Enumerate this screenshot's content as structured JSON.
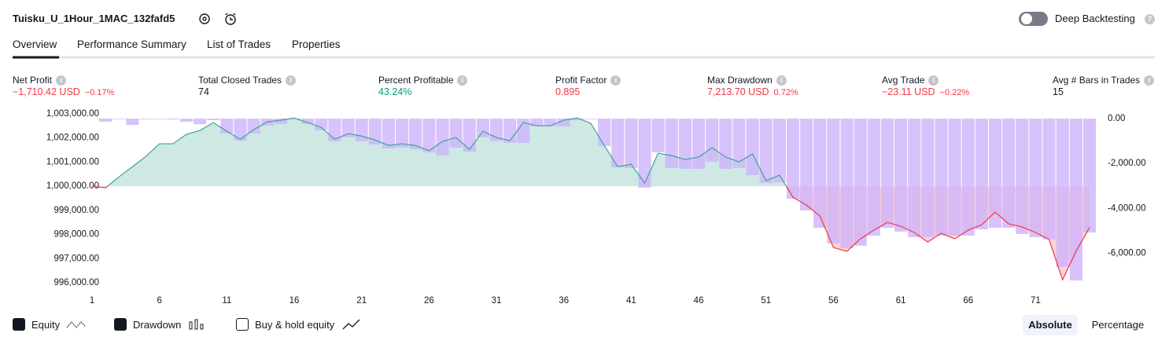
{
  "header": {
    "title": "Tuisku_U_1Hour_1MAC_132fafd5",
    "deep_backtesting": "Deep Backtesting"
  },
  "tabs": [
    "Overview",
    "Performance Summary",
    "List of Trades",
    "Properties"
  ],
  "metrics": [
    {
      "label": "Net Profit",
      "value": "−1,710.42 USD",
      "percent": "−0.17%"
    },
    {
      "label": "Total Closed Trades",
      "value": "74"
    },
    {
      "label": "Percent Profitable",
      "value": "43.24%"
    },
    {
      "label": "Profit Factor",
      "value": "0.895"
    },
    {
      "label": "Max Drawdown",
      "value": "7,213.70 USD",
      "percent": "0.72%"
    },
    {
      "label": "Avg Trade",
      "value": "−23.11 USD",
      "percent": "−0.22%"
    },
    {
      "label": "Avg # Bars in Trades",
      "value": "15"
    }
  ],
  "chart_data": {
    "type": "combo",
    "xlim": [
      1,
      75
    ],
    "xticks": [
      1,
      6,
      11,
      16,
      21,
      26,
      31,
      36,
      41,
      46,
      51,
      56,
      61,
      66,
      71
    ],
    "ylim": [
      996000,
      1003000
    ],
    "yticks": [
      {
        "value": 1003000,
        "label": "1,003,000.00"
      },
      {
        "value": 1002000,
        "label": "1,002,000.00"
      },
      {
        "value": 1001000,
        "label": "1,001,000.00"
      },
      {
        "value": 1000000,
        "label": "1,000,000.00"
      },
      {
        "value": 999000,
        "label": "999,000.00"
      },
      {
        "value": 998000,
        "label": "998,000.00"
      },
      {
        "value": 997000,
        "label": "997,000.00"
      },
      {
        "value": 996000,
        "label": "996,000.00"
      }
    ],
    "y2lim": [
      -7310,
      210
    ],
    "y2ticks": [
      {
        "value": 0,
        "label": "0.00"
      },
      {
        "value": -2000,
        "label": "-2,000.00"
      },
      {
        "value": -4000,
        "label": "-4,000.00"
      },
      {
        "value": -6000,
        "label": "-6,000.00"
      }
    ],
    "series": [
      {
        "name": "Equity",
        "type": "line",
        "color": "#3da393",
        "negative_color": "#f23645",
        "x": [
          1,
          2,
          3,
          4,
          5,
          6,
          7,
          8,
          9,
          10,
          11,
          12,
          13,
          14,
          15,
          16,
          17,
          18,
          19,
          20,
          21,
          22,
          23,
          24,
          25,
          26,
          27,
          28,
          29,
          30,
          31,
          32,
          33,
          34,
          35,
          36,
          37,
          38,
          39,
          40,
          41,
          42,
          43,
          44,
          45,
          46,
          47,
          48,
          49,
          50,
          51,
          52,
          53,
          54,
          55,
          56,
          57,
          58,
          59,
          60,
          61,
          62,
          63,
          64,
          65,
          66,
          67,
          68,
          69,
          70,
          71,
          72,
          73,
          74,
          75
        ],
        "values": [
          1000000,
          999935,
          1000390,
          1000810,
          1001240,
          1001760,
          1001760,
          1002150,
          1002310,
          1002640,
          1002280,
          1001950,
          1002350,
          1002670,
          1002740,
          1002830,
          1002640,
          1002440,
          1001950,
          1002180,
          1002080,
          1001920,
          1001690,
          1001760,
          1001690,
          1001470,
          1001860,
          1002020,
          1001530,
          1002280,
          1002020,
          1001890,
          1002640,
          1002510,
          1002510,
          1002740,
          1002830,
          1002610,
          1001690,
          1000810,
          1000910,
          1000130,
          1001370,
          1001270,
          1001110,
          1001210,
          1001600,
          1001210,
          1001010,
          1001340,
          1000230,
          1000460,
          999540,
          999220,
          998760,
          997460,
          997300,
          997820,
          998180,
          998500,
          998340,
          998080,
          997690,
          998050,
          997820,
          998180,
          998400,
          998930,
          998440,
          998310,
          998080,
          997790,
          996120,
          997300,
          998290
        ]
      },
      {
        "name": "Drawdown",
        "type": "bar",
        "axis": "y2",
        "color": "#cdb3fb",
        "x": [
          2,
          3,
          4,
          5,
          6,
          7,
          8,
          9,
          10,
          11,
          12,
          13,
          14,
          15,
          16,
          17,
          18,
          19,
          20,
          21,
          22,
          23,
          24,
          25,
          26,
          27,
          28,
          29,
          30,
          31,
          32,
          33,
          34,
          35,
          36,
          37,
          38,
          39,
          40,
          41,
          42,
          43,
          44,
          45,
          46,
          47,
          48,
          49,
          50,
          51,
          52,
          53,
          54,
          55,
          56,
          57,
          58,
          59,
          60,
          61,
          62,
          63,
          64,
          65,
          66,
          67,
          68,
          69,
          70,
          71,
          72,
          73,
          74,
          75
        ],
        "values": [
          -140,
          -30,
          -280,
          -30,
          -30,
          -40,
          -140,
          -250,
          -70,
          -660,
          -980,
          -660,
          -310,
          -240,
          -30,
          -240,
          -520,
          -1010,
          -840,
          -1010,
          -1150,
          -1330,
          -1290,
          -1360,
          -1500,
          -1640,
          -1290,
          -1470,
          -840,
          -1010,
          -1080,
          -1080,
          -350,
          -350,
          -350,
          -70,
          -30,
          -1220,
          -2170,
          -2200,
          -3080,
          -1500,
          -2200,
          -2240,
          -2240,
          -1920,
          -2240,
          -2200,
          -2520,
          -2870,
          -2830,
          -3570,
          -4090,
          -4860,
          -5560,
          -5770,
          -5660,
          -5210,
          -4860,
          -5030,
          -5280,
          -5280,
          -5210,
          -5210,
          -5210,
          -4930,
          -4860,
          -4860,
          -5140,
          -5280,
          -5380,
          -6610,
          -7210,
          -5070
        ]
      }
    ]
  },
  "controls": {
    "buy_hold": "Buy & hold equity",
    "absolute": "Absolute",
    "percentage": "Percentage"
  }
}
